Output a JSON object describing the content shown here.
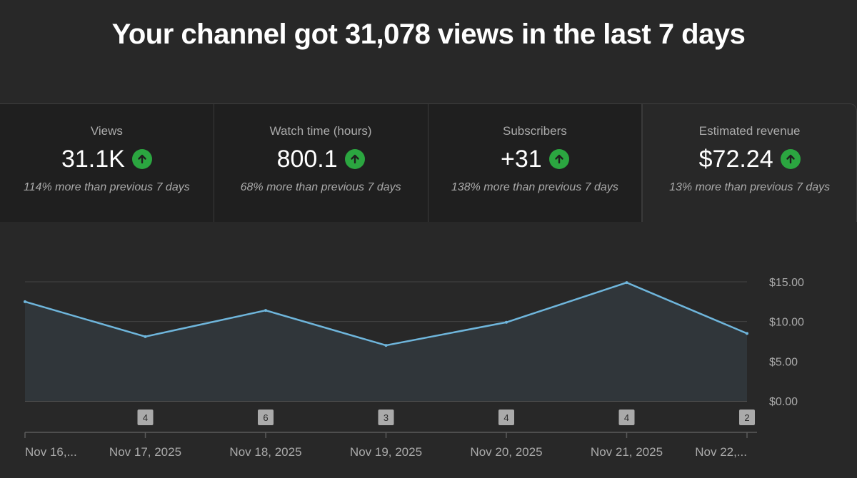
{
  "headline": "Your channel got 31,078 views in the last 7 days",
  "cards": [
    {
      "label": "Views",
      "value": "31.1K",
      "compare": "114% more than previous 7 days",
      "trend_icon": "arrow-up-icon"
    },
    {
      "label": "Watch time (hours)",
      "value": "800.1",
      "compare": "68% more than previous 7 days",
      "trend_icon": "arrow-up-icon"
    },
    {
      "label": "Subscribers",
      "value": "+31",
      "compare": "138% more than previous 7 days",
      "trend_icon": "arrow-up-icon"
    },
    {
      "label": "Estimated revenue",
      "value": "$72.24",
      "compare": "13% more than previous 7 days",
      "trend_icon": "arrow-up-icon"
    }
  ],
  "colors": {
    "background": "#282828",
    "card_background": "#1f1f1f",
    "line": "#6fb6dc",
    "area": "#30363a",
    "up_badge": "#2ba640"
  },
  "chart_data": {
    "type": "area",
    "x": [
      "Nov 16,...",
      "Nov 17, 2025",
      "Nov 18, 2025",
      "Nov 19, 2025",
      "Nov 20, 2025",
      "Nov 21, 2025",
      "Nov 22,..."
    ],
    "y": [
      12.5,
      8.1,
      11.4,
      7.0,
      9.9,
      14.9,
      8.5
    ],
    "ytick_labels": [
      "$0.00",
      "$5.00",
      "$10.00",
      "$15.00"
    ],
    "ytick_values": [
      0,
      5,
      10,
      15
    ],
    "ylim": [
      0,
      15
    ],
    "grid": true,
    "annotations": [
      {
        "x": "Nov 17, 2025",
        "label": "4"
      },
      {
        "x": "Nov 18, 2025",
        "label": "6"
      },
      {
        "x": "Nov 19, 2025",
        "label": "3"
      },
      {
        "x": "Nov 20, 2025",
        "label": "4"
      },
      {
        "x": "Nov 21, 2025",
        "label": "4"
      },
      {
        "x": "Nov 22,...",
        "label": "2"
      }
    ]
  }
}
